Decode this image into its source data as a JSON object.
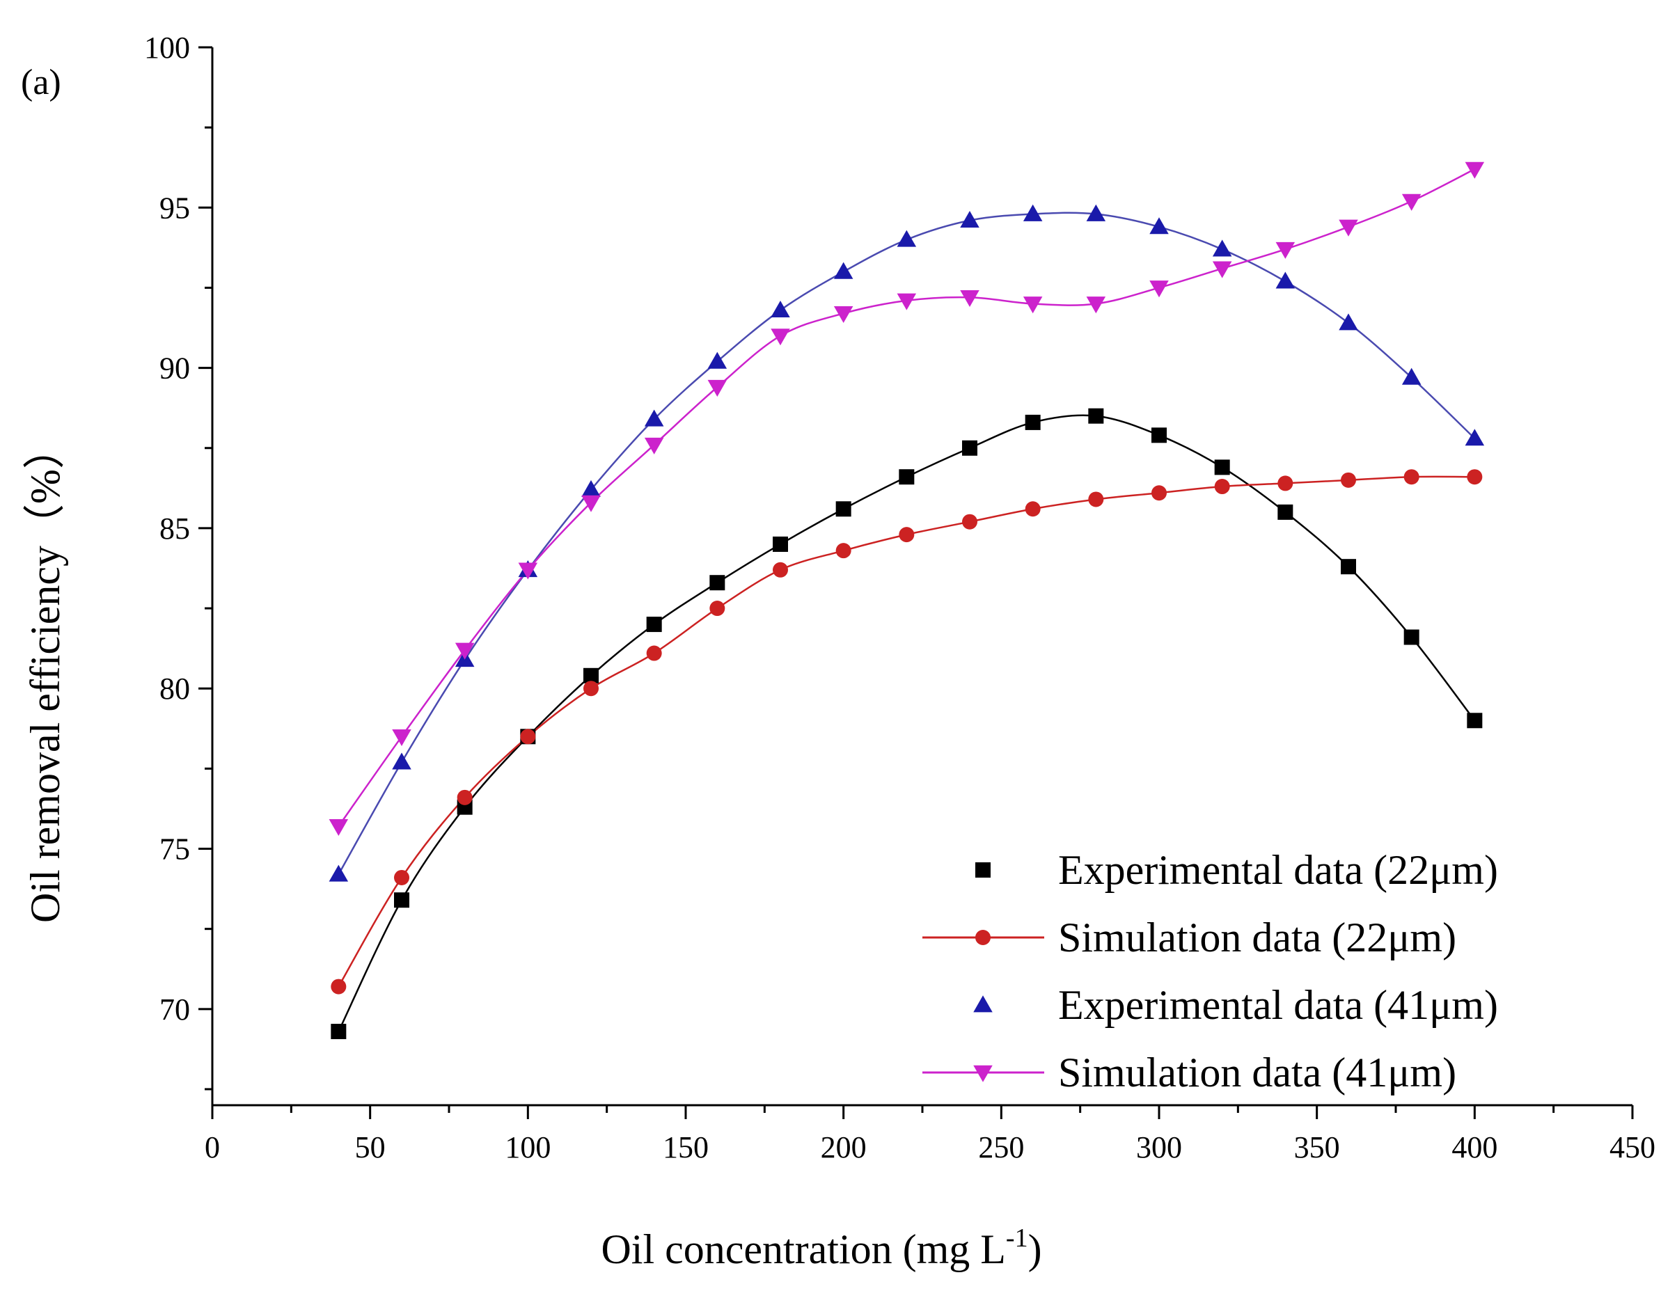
{
  "panel_label": "(a)",
  "chart_data": {
    "type": "line",
    "title": "",
    "xlabel": "Oil concentration (mg L",
    "xlabel_sup": "-1",
    "xlabel_end": ")",
    "ylabel": "Oil removal efficiency（%）",
    "xlim": [
      0,
      450
    ],
    "ylim": [
      67,
      100
    ],
    "x_ticks": [
      0,
      50,
      100,
      150,
      200,
      250,
      300,
      350,
      400,
      450
    ],
    "y_ticks": [
      70,
      75,
      80,
      85,
      90,
      95,
      100
    ],
    "grid": false,
    "legend_position": "bottom-right",
    "x": [
      40,
      60,
      80,
      100,
      120,
      140,
      160,
      180,
      200,
      220,
      240,
      260,
      280,
      300,
      320,
      340,
      360,
      380,
      400
    ],
    "series": [
      {
        "name": "Experimental data (22μm)",
        "marker": "square",
        "color": "#000000",
        "line_color": "#000000",
        "legend_line": false,
        "values": [
          69.3,
          73.4,
          76.3,
          78.5,
          80.4,
          82.0,
          83.3,
          84.5,
          85.6,
          86.6,
          87.5,
          88.3,
          88.5,
          87.9,
          86.9,
          85.5,
          83.8,
          81.6,
          79.0
        ]
      },
      {
        "name": "Simulation data (22μm)",
        "marker": "circle",
        "color": "#cc2222",
        "line_color": "#cc2222",
        "legend_line": true,
        "values": [
          70.7,
          74.1,
          76.6,
          78.5,
          80.0,
          81.1,
          82.5,
          83.7,
          84.3,
          84.8,
          85.2,
          85.6,
          85.9,
          86.1,
          86.3,
          86.4,
          86.5,
          86.6,
          86.6
        ]
      },
      {
        "name": "Experimental data (41μm)",
        "marker": "triangle-up",
        "color": "#1a1aaa",
        "line_color": "#4a4ab0",
        "legend_line": false,
        "values": [
          74.2,
          77.7,
          80.9,
          83.7,
          86.2,
          88.4,
          90.2,
          91.8,
          93.0,
          94.0,
          94.6,
          94.8,
          94.8,
          94.4,
          93.7,
          92.7,
          91.4,
          89.7,
          87.8
        ]
      },
      {
        "name": "Simulation data (41μm)",
        "marker": "triangle-down",
        "color": "#cc22cc",
        "line_color": "#cc22cc",
        "legend_line": true,
        "values": [
          75.7,
          78.5,
          81.2,
          83.7,
          85.8,
          87.6,
          89.4,
          91.0,
          91.7,
          92.1,
          92.2,
          92.0,
          92.0,
          92.5,
          93.1,
          93.7,
          94.4,
          95.2,
          96.2
        ]
      }
    ]
  }
}
